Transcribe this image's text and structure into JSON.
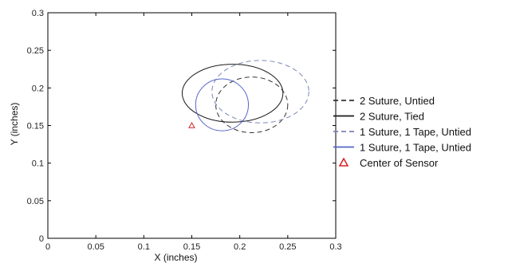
{
  "chart_data": {
    "type": "line",
    "title": "",
    "xlabel": "X (inches)",
    "ylabel": "Y (inches)",
    "xlim": [
      0,
      0.3
    ],
    "ylim": [
      0,
      0.3
    ],
    "x_ticks": [
      "0",
      "0.05",
      "0.1",
      "0.15",
      "0.2",
      "0.25",
      "0.3"
    ],
    "y_ticks": [
      "0",
      "0.05",
      "0.1",
      "0.15",
      "0.2",
      "0.25",
      "0.3"
    ],
    "grid": false,
    "legend_position": "right",
    "series": [
      {
        "name": "2 Suture, Untied",
        "shape": "ellipse",
        "center": [
          0.2125,
          0.1775
        ],
        "radius": [
          0.0375,
          0.037
        ],
        "color": "#333333",
        "dash": "dashed"
      },
      {
        "name": "2 Suture, Tied",
        "shape": "ellipse",
        "center": [
          0.1925,
          0.193
        ],
        "radius": [
          0.0525,
          0.0385
        ],
        "color": "#1a1a1a",
        "dash": "solid"
      },
      {
        "name": "1 Suture, 1 Tape, Untied",
        "shape": "ellipse",
        "center": [
          0.2215,
          0.195
        ],
        "radius": [
          0.0505,
          0.0415
        ],
        "color": "#7a86b8",
        "dash": "dashed"
      },
      {
        "name": "1 Suture, 1 Tape, Untied",
        "shape": "ellipse",
        "center": [
          0.1815,
          0.1775
        ],
        "radius": [
          0.0275,
          0.0345
        ],
        "color": "#5566c8",
        "dash": "solid"
      },
      {
        "name": "Center of Sensor",
        "shape": "marker",
        "marker": "triangle",
        "points": [
          [
            0.15,
            0.15
          ]
        ],
        "color": "#d62020"
      }
    ]
  }
}
